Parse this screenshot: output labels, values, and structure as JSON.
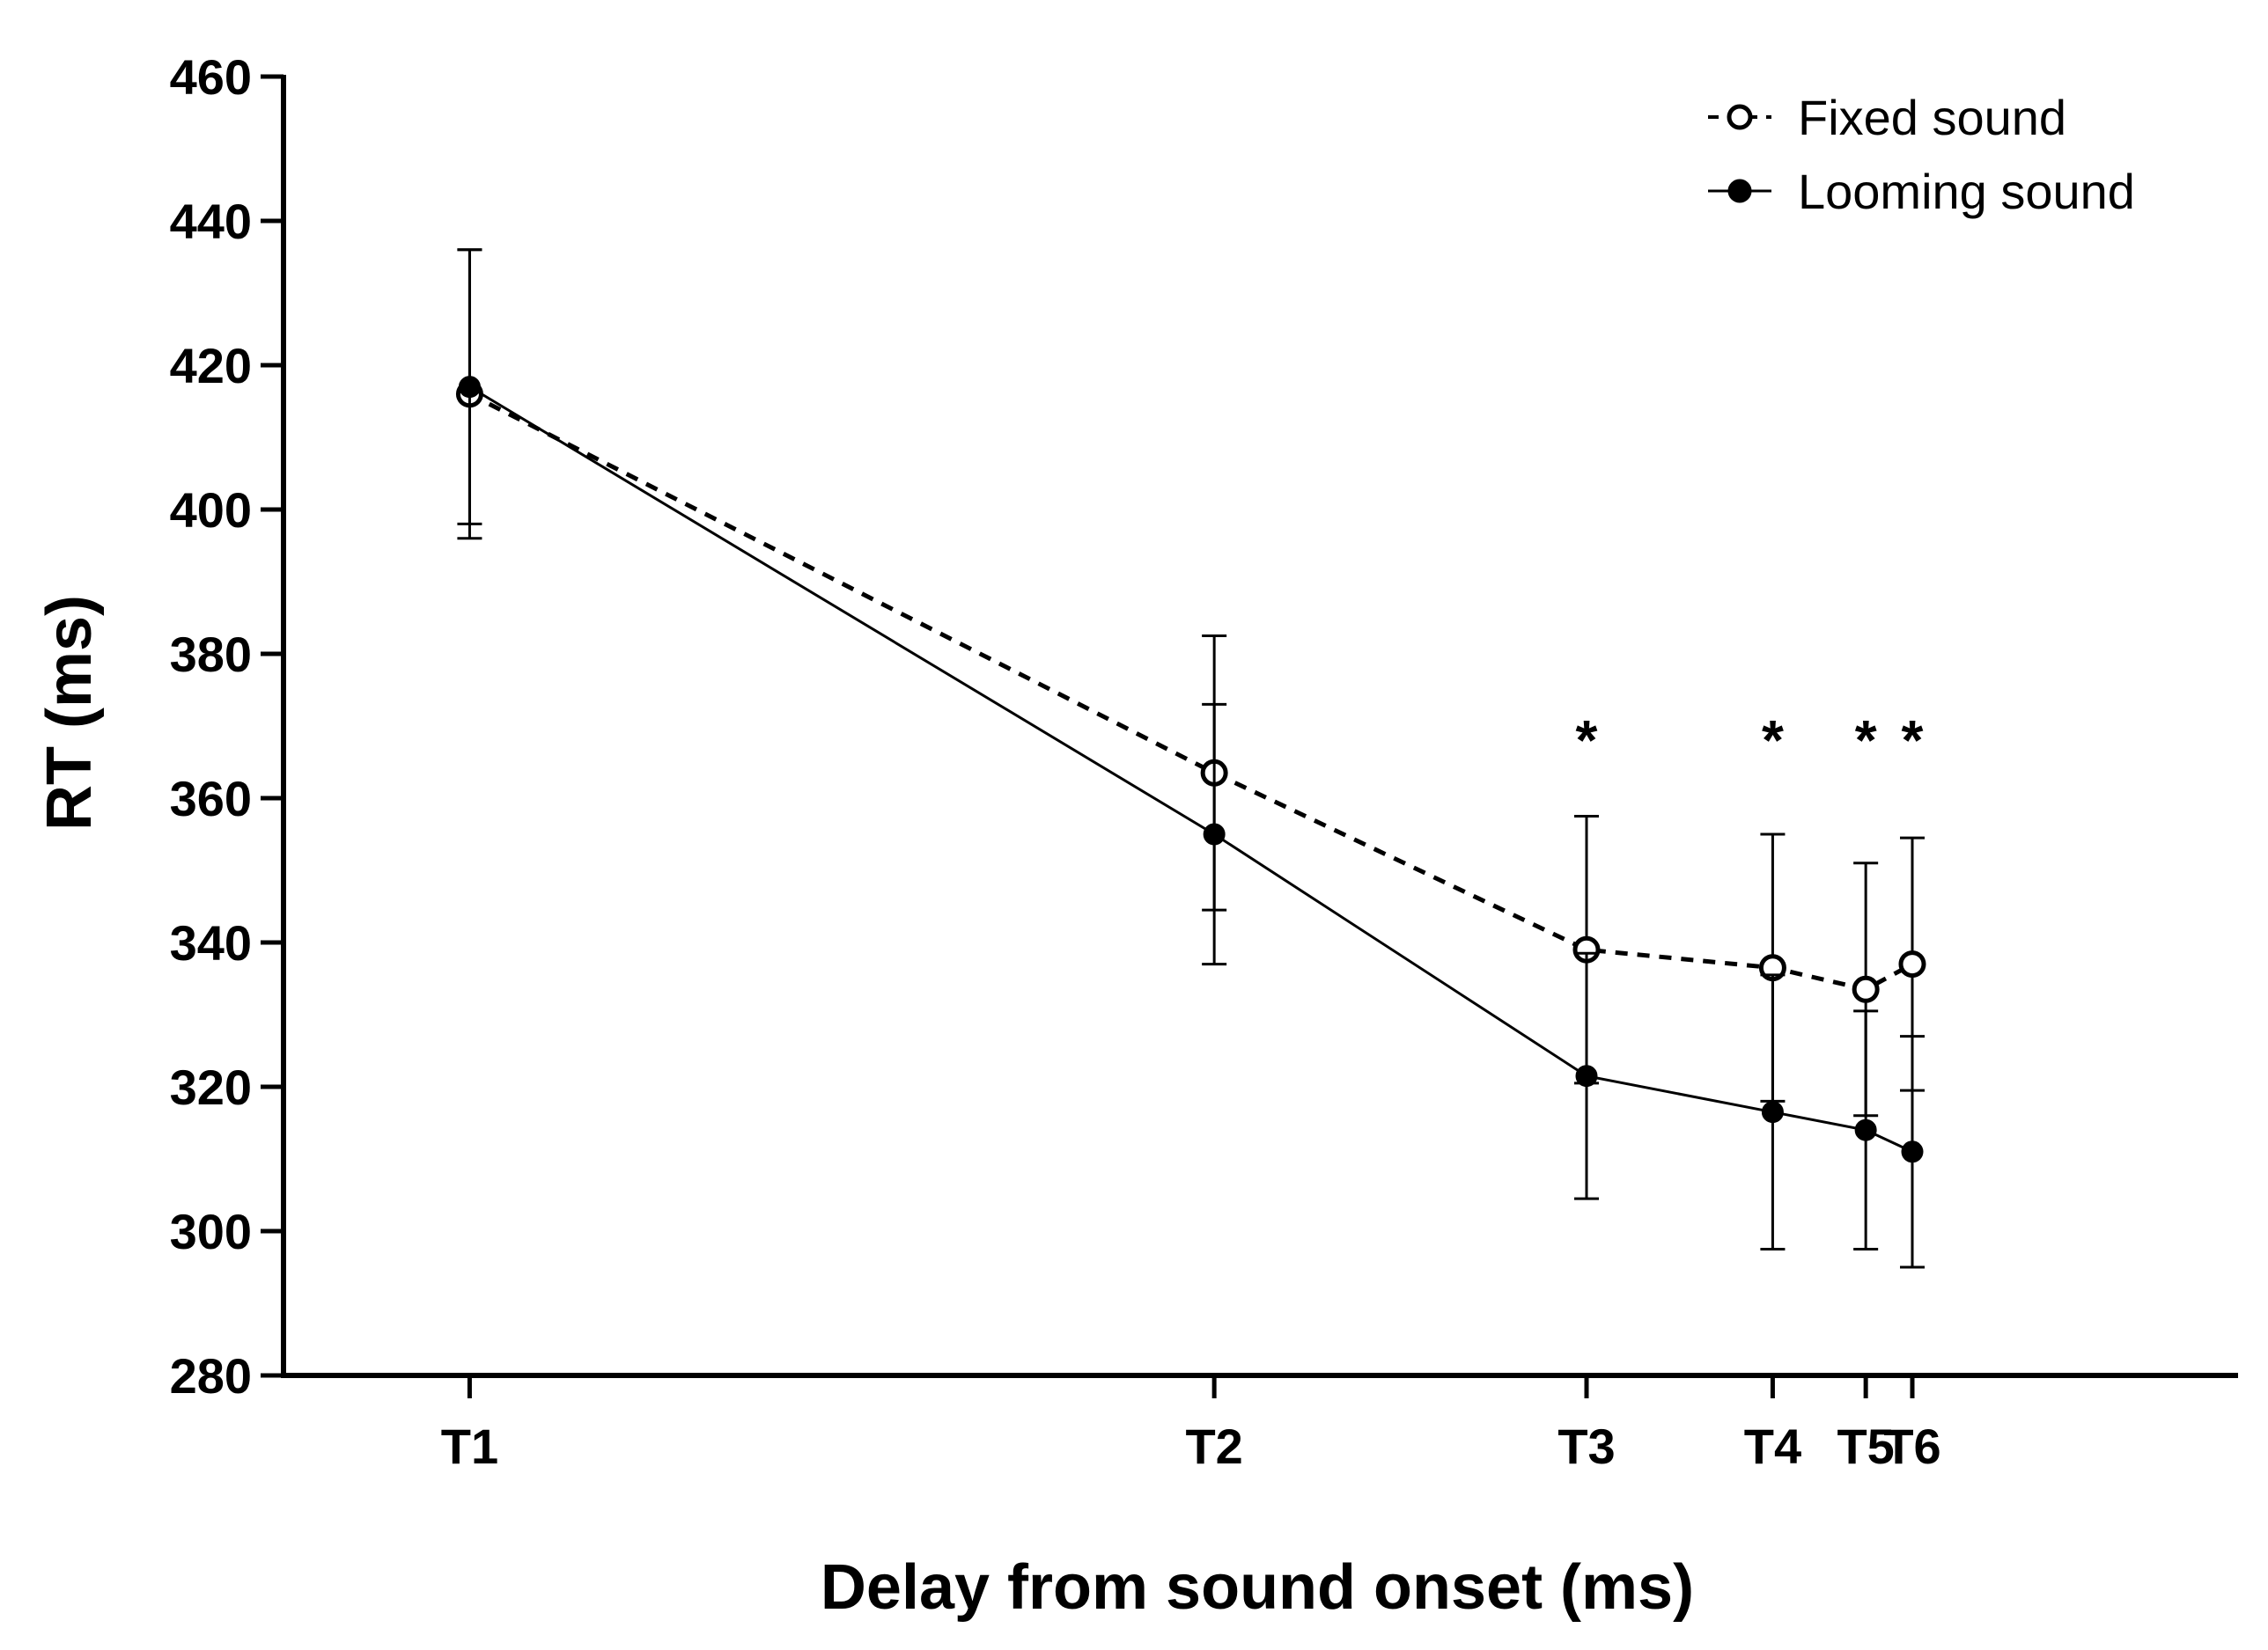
{
  "chart_data": {
    "type": "line",
    "title": "",
    "xlabel": "Delay from sound onset (ms)",
    "ylabel": "RT (ms)",
    "ylim": [
      280,
      460
    ],
    "yticks": [
      280,
      300,
      320,
      340,
      360,
      380,
      400,
      420,
      440,
      460
    ],
    "categories": [
      "T1",
      "T2",
      "T3",
      "T4",
      "T5",
      "T6"
    ],
    "x_positions": [
      1,
      5,
      7,
      8,
      8.5,
      8.75
    ],
    "xlim": [
      0,
      10.5
    ],
    "grid": false,
    "legend_position": "top-right",
    "series": [
      {
        "name": "Fixed sound",
        "style": "dashed",
        "marker": "open-circle",
        "values": [
          416,
          363.5,
          339,
          336.5,
          333.5,
          337
        ],
        "errors": [
          20,
          19,
          18.5,
          18.5,
          17.5,
          17.5
        ]
      },
      {
        "name": "Looming sound",
        "style": "solid",
        "marker": "filled-circle",
        "values": [
          417,
          355,
          321.5,
          316.5,
          314,
          311
        ],
        "errors": [
          19,
          18,
          17,
          19,
          16.5,
          16
        ]
      }
    ],
    "annotations": [
      {
        "label": "*",
        "category": "T3",
        "y": 371
      },
      {
        "label": "*",
        "category": "T4",
        "y": 371
      },
      {
        "label": "*",
        "category": "T5",
        "y": 371
      },
      {
        "label": "*",
        "category": "T6",
        "y": 371
      }
    ]
  },
  "colors": {
    "axis": "#000000",
    "line": "#000000",
    "open_marker_fill": "#ffffff"
  }
}
